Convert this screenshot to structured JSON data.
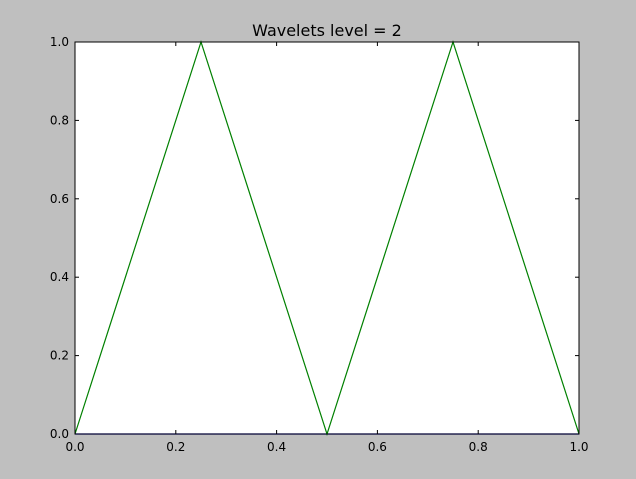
{
  "chart_data": {
    "type": "line",
    "title": "Wavelets level = 2",
    "xlabel": "",
    "ylabel": "",
    "xlim": [
      0.0,
      1.0
    ],
    "ylim": [
      0.0,
      1.0
    ],
    "xticks": [
      "0.0",
      "0.2",
      "0.4",
      "0.6",
      "0.8",
      "1.0"
    ],
    "yticks": [
      "0.0",
      "0.2",
      "0.4",
      "0.6",
      "0.8",
      "1.0"
    ],
    "grid": false,
    "series": [
      {
        "color": "#008000",
        "x": [
          0.0,
          0.25,
          0.5,
          0.75,
          1.0
        ],
        "y": [
          0.0,
          1.0,
          0.0,
          1.0,
          0.0
        ]
      },
      {
        "color": "#0000ff",
        "x": [
          0.0,
          1.0
        ],
        "y": [
          0.0,
          0.0
        ]
      }
    ]
  }
}
